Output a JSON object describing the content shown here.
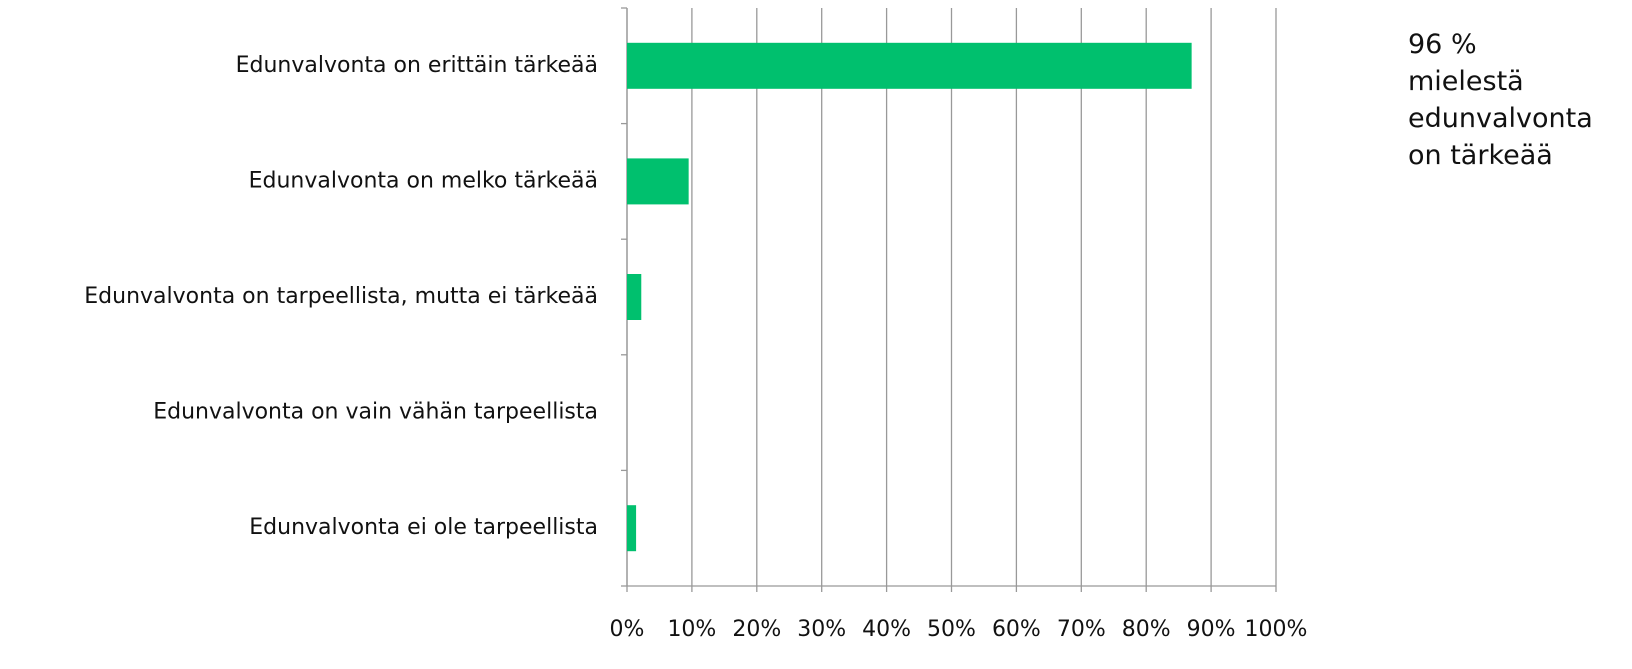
{
  "chart_data": {
    "type": "bar",
    "orientation": "horizontal",
    "categories": [
      "Edunvalvonta on erittäin tärkeää",
      "Edunvalvonta on melko tärkeää",
      "Edunvalvonta on tarpeellista, mutta ei tärkeää",
      "Edunvalvonta on vain vähän tarpeellista",
      "Edunvalvonta ei ole tarpeellista"
    ],
    "values": [
      87,
      9.5,
      2.2,
      0,
      1.4
    ],
    "color": "#00c06e",
    "xlim": [
      0,
      100
    ],
    "xticks": [
      {
        "value": 0,
        "label": "0%"
      },
      {
        "value": 10,
        "label": "10%"
      },
      {
        "value": 20,
        "label": "20%"
      },
      {
        "value": 30,
        "label": "30%"
      },
      {
        "value": 40,
        "label": "40%"
      },
      {
        "value": 50,
        "label": "50%"
      },
      {
        "value": 60,
        "label": "60%"
      },
      {
        "value": 70,
        "label": "70%"
      },
      {
        "value": 80,
        "label": "80%"
      },
      {
        "value": 90,
        "label": "90%"
      },
      {
        "value": 100,
        "label": "100%"
      }
    ],
    "grid": true,
    "annotation": "96 % mielestä edunvalvonta on tärkeää"
  }
}
